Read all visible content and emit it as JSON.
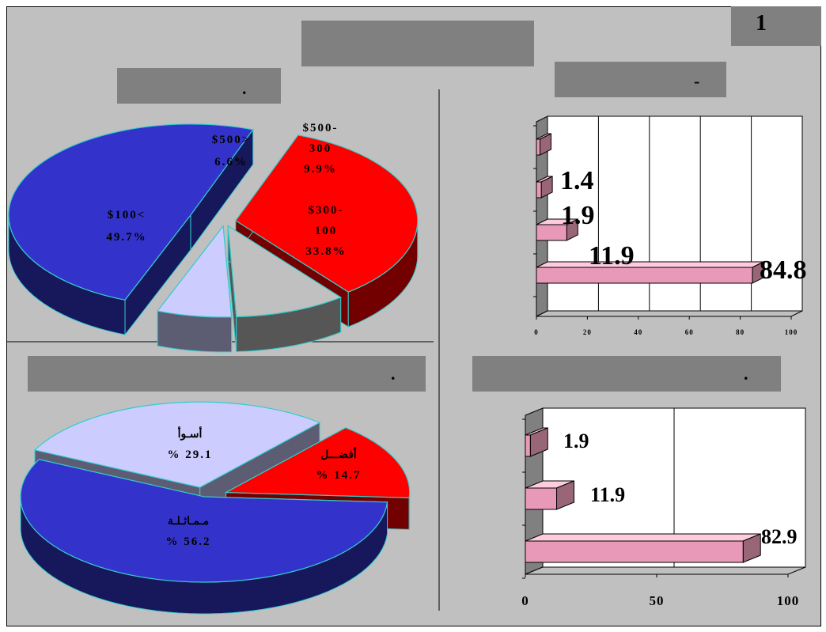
{
  "page": {
    "number": "1",
    "title_dots": [
      ".",
      "-",
      ".",
      "."
    ]
  },
  "chart_data": [
    {
      "type": "pie",
      "position": "top-left",
      "slices": [
        {
          "label": "$100<",
          "value": 49.7,
          "text": "49.7%",
          "color": "#3333cc"
        },
        {
          "label": "$500>",
          "value": 6.6,
          "text": "6.6%",
          "color": "#ccccff"
        },
        {
          "label": "$500-300",
          "value": 9.9,
          "text": "9.9%",
          "color": "#c0c0c0"
        },
        {
          "label": "$300-100",
          "value": 33.8,
          "text": "33.8%",
          "color": "#ff0000"
        }
      ],
      "label_lines": {
        "s0a": "$100<",
        "s0b": "49.7%",
        "s1a": "$500>",
        "s1b": "6.6%",
        "s2a": "$500-",
        "s2b": "300",
        "s2c": "9.9%",
        "s3a": "$300-",
        "s3b": "100",
        "s3c": "33.8%"
      }
    },
    {
      "type": "bar",
      "orientation": "horizontal",
      "position": "top-right",
      "values": [
        84.8,
        11.9,
        1.9,
        1.4
      ],
      "data_labels": [
        "84.8",
        "11.9",
        "1.9",
        "1.4"
      ],
      "xlim": [
        0,
        100
      ],
      "xticks": [
        "0",
        "20",
        "40",
        "60",
        "80",
        "100"
      ],
      "bar_color": "#ff99cc",
      "grid": true
    },
    {
      "type": "pie",
      "position": "bottom-left",
      "slices": [
        {
          "label": "مماثلة",
          "value": 56.2,
          "text": "% 56.2",
          "color": "#3333cc"
        },
        {
          "label": "أسوأ",
          "value": 29.1,
          "text": "% 29.1",
          "color": "#ccccff"
        },
        {
          "label": "أفضل",
          "value": 14.7,
          "text": "% 14.7",
          "color": "#ff0000"
        }
      ],
      "label_lines": {
        "s0a": "مـمـاثـلـة",
        "s0b": "% 56.2",
        "s1a": "أسـوأ",
        "s1b": "% 29.1",
        "s2a": "أفضـــل",
        "s2b": "% 14.7"
      }
    },
    {
      "type": "bar",
      "orientation": "horizontal",
      "position": "bottom-right",
      "values": [
        82.9,
        11.9,
        1.9
      ],
      "data_labels": [
        "82.9",
        "11.9",
        "1.9"
      ],
      "xlim": [
        0,
        100
      ],
      "xticks": [
        "0",
        "50",
        "100"
      ],
      "bar_color": "#ff99cc",
      "grid": true
    }
  ]
}
